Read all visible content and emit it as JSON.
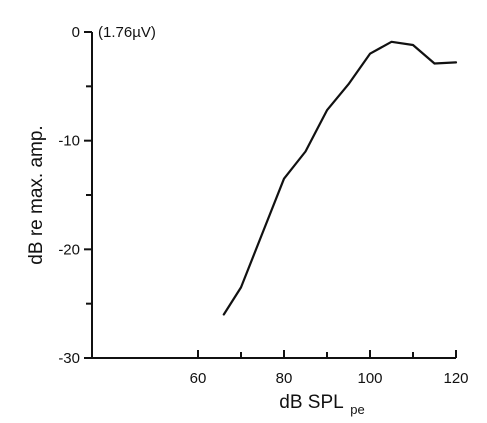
{
  "chart_data": {
    "type": "line",
    "title": "",
    "xlabel": "dB SPL",
    "xlabel_subscript": "pe",
    "ylabel": "dB re max. amp.",
    "annotation": "(1.76µV)",
    "xlim": [
      40,
      120
    ],
    "ylim": [
      -30,
      0
    ],
    "x_ticks": [
      60,
      80,
      100,
      120
    ],
    "x_minor_ticks": [
      70,
      90,
      110
    ],
    "y_ticks": [
      0,
      -10,
      -20,
      -30
    ],
    "y_minor_ticks": [
      -5,
      -15,
      -25
    ],
    "grid": false,
    "series": [
      {
        "x": [
          66,
          70,
          75,
          80,
          85,
          90,
          95,
          100,
          105,
          110,
          115,
          120
        ],
        "values": [
          -26,
          -23.5,
          -18.5,
          -13.5,
          -11,
          -7.2,
          -4.8,
          -2.0,
          -0.9,
          -1.2,
          -2.9,
          -2.8
        ]
      }
    ],
    "line_color": "#111111"
  }
}
